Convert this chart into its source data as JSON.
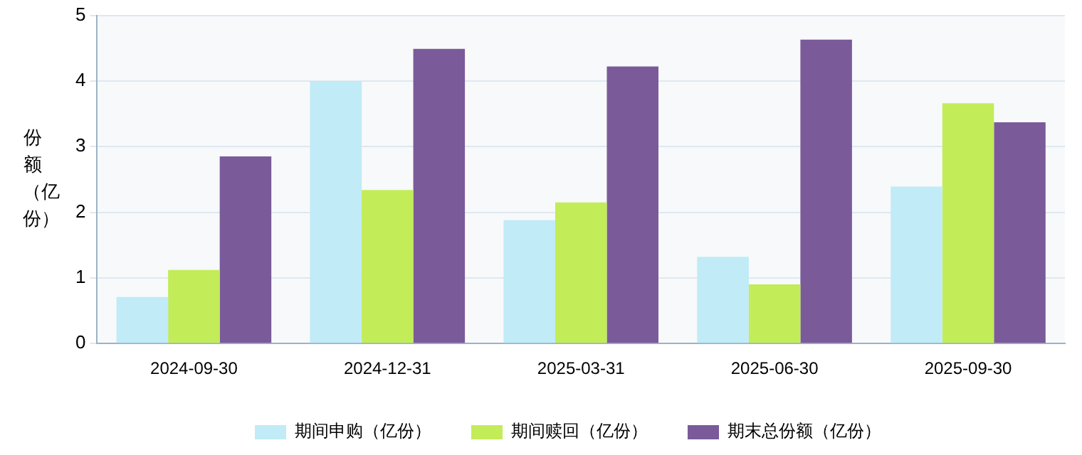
{
  "chart_data": {
    "type": "bar",
    "ylabel": "份额（亿份）",
    "categories": [
      "2024-09-30",
      "2024-12-31",
      "2025-03-31",
      "2025-06-30",
      "2025-09-30"
    ],
    "series": [
      {
        "name": "期间申购（亿份）",
        "color": "#c0ebf7",
        "values": [
          0.71,
          4.0,
          1.88,
          1.32,
          2.39
        ]
      },
      {
        "name": "期间赎回（亿份）",
        "color": "#c2ec58",
        "values": [
          1.12,
          2.34,
          2.15,
          0.9,
          3.66
        ]
      },
      {
        "name": "期末总份额（亿份）",
        "color": "#7b5a99",
        "values": [
          2.85,
          4.49,
          4.22,
          4.63,
          3.37
        ]
      }
    ],
    "ylim": [
      0,
      5
    ],
    "yticks": [
      0,
      1,
      2,
      3,
      4,
      5
    ],
    "grid": "y",
    "legend": "bottom"
  }
}
